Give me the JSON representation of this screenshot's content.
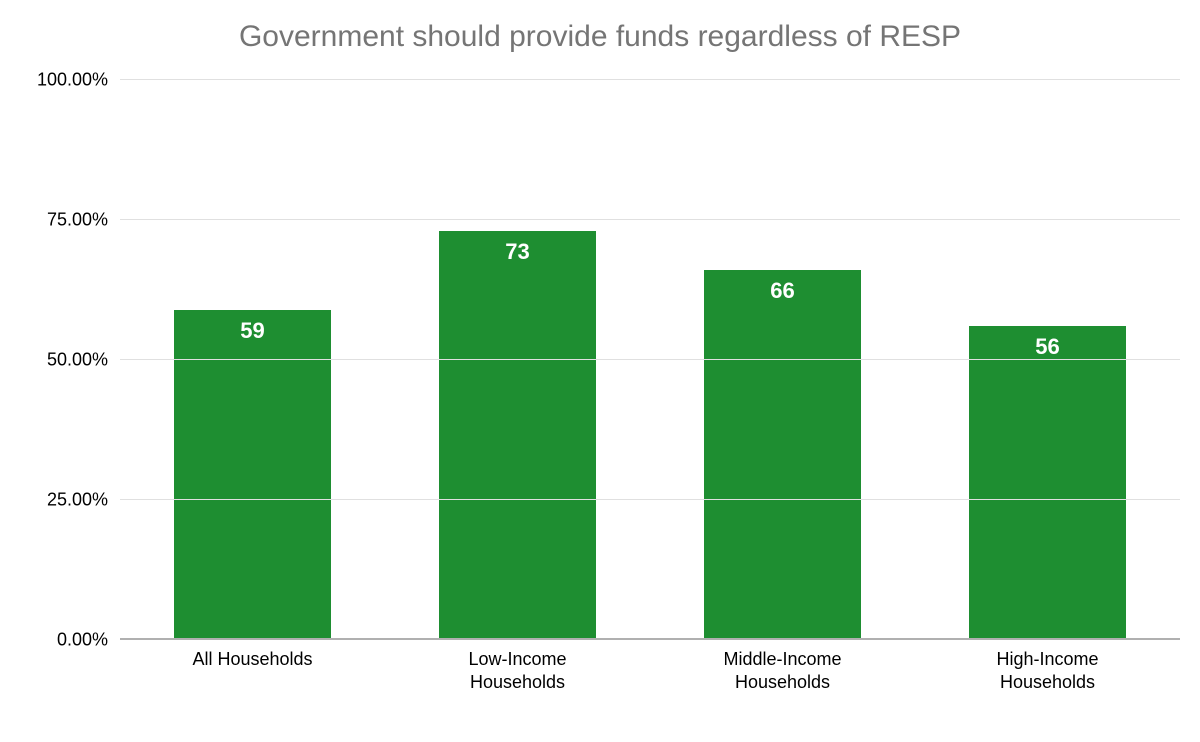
{
  "chart": {
    "type": "bar",
    "title": "Government should provide funds regardless of RESP",
    "title_color": "#757575",
    "title_fontsize": 30,
    "background_color": "#ffffff",
    "grid_color": "#e0e0e0",
    "baseline_color": "#b0b0b0",
    "axis_text_color": "#000000",
    "axis_fontsize": 18,
    "value_label_color": "#ffffff",
    "value_label_fontsize": 22,
    "value_label_weight": "700",
    "ylim": [
      0,
      100
    ],
    "ytick_step": 25,
    "yticks": [
      {
        "value": 0,
        "label": "0.00%"
      },
      {
        "value": 25,
        "label": "25.00%"
      },
      {
        "value": 50,
        "label": "50.00%"
      },
      {
        "value": 75,
        "label": "75.00%"
      },
      {
        "value": 100,
        "label": "100.00%"
      }
    ],
    "bar_color": "#1e8e31",
    "bar_width_ratio": 0.59,
    "categories": [
      {
        "label": "All Households",
        "value": 59,
        "display": "59"
      },
      {
        "label": "Low-Income Households",
        "value": 73,
        "display": "73"
      },
      {
        "label": "Middle-Income Households",
        "value": 66,
        "display": "66"
      },
      {
        "label": "High-Income Households",
        "value": 56,
        "display": "56"
      }
    ]
  }
}
